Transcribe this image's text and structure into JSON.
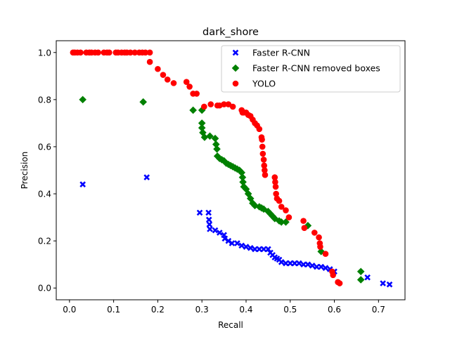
{
  "chart_data": {
    "type": "scatter",
    "title": "dark_shore",
    "xlabel": "Recall",
    "ylabel": "Precision",
    "xlim": [
      -0.03,
      0.76
    ],
    "ylim": [
      -0.05,
      1.05
    ],
    "xticks": [
      0.0,
      0.1,
      0.2,
      0.3,
      0.4,
      0.5,
      0.6,
      0.7
    ],
    "yticks": [
      0.0,
      0.2,
      0.4,
      0.6,
      0.8,
      1.0
    ],
    "xtick_labels": [
      "0.0",
      "0.1",
      "0.2",
      "0.3",
      "0.4",
      "0.5",
      "0.6",
      "0.7"
    ],
    "ytick_labels": [
      "0.0",
      "0.2",
      "0.4",
      "0.6",
      "0.8",
      "1.0"
    ],
    "grid": false,
    "legend_position": "top-right",
    "series": [
      {
        "name": "Faster R-CNN",
        "marker": "X",
        "color": "#0000ff",
        "points": [
          [
            0.03,
            0.44
          ],
          [
            0.175,
            0.47
          ],
          [
            0.295,
            0.32
          ],
          [
            0.315,
            0.32
          ],
          [
            0.316,
            0.29
          ],
          [
            0.317,
            0.27
          ],
          [
            0.318,
            0.25
          ],
          [
            0.33,
            0.245
          ],
          [
            0.34,
            0.235
          ],
          [
            0.35,
            0.225
          ],
          [
            0.352,
            0.21
          ],
          [
            0.36,
            0.2
          ],
          [
            0.368,
            0.19
          ],
          [
            0.38,
            0.19
          ],
          [
            0.39,
            0.18
          ],
          [
            0.4,
            0.175
          ],
          [
            0.41,
            0.17
          ],
          [
            0.42,
            0.165
          ],
          [
            0.43,
            0.165
          ],
          [
            0.44,
            0.165
          ],
          [
            0.45,
            0.165
          ],
          [
            0.455,
            0.15
          ],
          [
            0.46,
            0.14
          ],
          [
            0.465,
            0.13
          ],
          [
            0.47,
            0.125
          ],
          [
            0.475,
            0.12
          ],
          [
            0.48,
            0.11
          ],
          [
            0.49,
            0.105
          ],
          [
            0.5,
            0.105
          ],
          [
            0.51,
            0.105
          ],
          [
            0.52,
            0.105
          ],
          [
            0.53,
            0.1
          ],
          [
            0.54,
            0.1
          ],
          [
            0.55,
            0.095
          ],
          [
            0.56,
            0.09
          ],
          [
            0.57,
            0.09
          ],
          [
            0.58,
            0.085
          ],
          [
            0.59,
            0.08
          ],
          [
            0.6,
            0.07
          ],
          [
            0.675,
            0.045
          ],
          [
            0.71,
            0.02
          ],
          [
            0.725,
            0.015
          ]
        ]
      },
      {
        "name": "Faster R-CNN removed boxes",
        "marker": "D",
        "color": "#008000",
        "points": [
          [
            0.03,
            0.8
          ],
          [
            0.167,
            0.79
          ],
          [
            0.28,
            0.755
          ],
          [
            0.3,
            0.755
          ],
          [
            0.3,
            0.7
          ],
          [
            0.3,
            0.68
          ],
          [
            0.302,
            0.66
          ],
          [
            0.306,
            0.64
          ],
          [
            0.318,
            0.645
          ],
          [
            0.33,
            0.635
          ],
          [
            0.332,
            0.61
          ],
          [
            0.334,
            0.59
          ],
          [
            0.335,
            0.56
          ],
          [
            0.34,
            0.55
          ],
          [
            0.345,
            0.545
          ],
          [
            0.35,
            0.54
          ],
          [
            0.355,
            0.53
          ],
          [
            0.36,
            0.525
          ],
          [
            0.365,
            0.52
          ],
          [
            0.37,
            0.515
          ],
          [
            0.375,
            0.51
          ],
          [
            0.38,
            0.505
          ],
          [
            0.385,
            0.5
          ],
          [
            0.39,
            0.49
          ],
          [
            0.392,
            0.47
          ],
          [
            0.393,
            0.45
          ],
          [
            0.395,
            0.43
          ],
          [
            0.4,
            0.42
          ],
          [
            0.405,
            0.4
          ],
          [
            0.41,
            0.38
          ],
          [
            0.415,
            0.36
          ],
          [
            0.42,
            0.35
          ],
          [
            0.43,
            0.345
          ],
          [
            0.435,
            0.34
          ],
          [
            0.44,
            0.335
          ],
          [
            0.45,
            0.325
          ],
          [
            0.455,
            0.315
          ],
          [
            0.46,
            0.305
          ],
          [
            0.465,
            0.295
          ],
          [
            0.475,
            0.285
          ],
          [
            0.48,
            0.28
          ],
          [
            0.49,
            0.28
          ],
          [
            0.54,
            0.265
          ],
          [
            0.57,
            0.155
          ],
          [
            0.66,
            0.07
          ],
          [
            0.66,
            0.035
          ]
        ]
      },
      {
        "name": "YOLO",
        "marker": "o",
        "color": "#ff0000",
        "points": [
          [
            0.008,
            1.0
          ],
          [
            0.012,
            1.0
          ],
          [
            0.018,
            1.0
          ],
          [
            0.025,
            1.0
          ],
          [
            0.038,
            1.0
          ],
          [
            0.045,
            1.0
          ],
          [
            0.05,
            1.0
          ],
          [
            0.058,
            1.0
          ],
          [
            0.065,
            1.0
          ],
          [
            0.078,
            1.0
          ],
          [
            0.085,
            1.0
          ],
          [
            0.09,
            1.0
          ],
          [
            0.105,
            1.0
          ],
          [
            0.11,
            1.0
          ],
          [
            0.118,
            1.0
          ],
          [
            0.125,
            1.0
          ],
          [
            0.13,
            1.0
          ],
          [
            0.138,
            1.0
          ],
          [
            0.148,
            1.0
          ],
          [
            0.158,
            1.0
          ],
          [
            0.165,
            1.0
          ],
          [
            0.172,
            1.0
          ],
          [
            0.182,
            1.0
          ],
          [
            0.182,
            0.96
          ],
          [
            0.2,
            0.93
          ],
          [
            0.212,
            0.905
          ],
          [
            0.222,
            0.885
          ],
          [
            0.236,
            0.87
          ],
          [
            0.265,
            0.875
          ],
          [
            0.272,
            0.855
          ],
          [
            0.28,
            0.825
          ],
          [
            0.288,
            0.825
          ],
          [
            0.305,
            0.77
          ],
          [
            0.32,
            0.78
          ],
          [
            0.335,
            0.775
          ],
          [
            0.34,
            0.775
          ],
          [
            0.35,
            0.78
          ],
          [
            0.36,
            0.78
          ],
          [
            0.37,
            0.77
          ],
          [
            0.39,
            0.755
          ],
          [
            0.392,
            0.745
          ],
          [
            0.395,
            0.745
          ],
          [
            0.4,
            0.745
          ],
          [
            0.405,
            0.735
          ],
          [
            0.41,
            0.73
          ],
          [
            0.415,
            0.715
          ],
          [
            0.42,
            0.7
          ],
          [
            0.425,
            0.69
          ],
          [
            0.43,
            0.675
          ],
          [
            0.435,
            0.64
          ],
          [
            0.436,
            0.63
          ],
          [
            0.437,
            0.6
          ],
          [
            0.438,
            0.57
          ],
          [
            0.44,
            0.545
          ],
          [
            0.441,
            0.52
          ],
          [
            0.442,
            0.5
          ],
          [
            0.443,
            0.48
          ],
          [
            0.465,
            0.47
          ],
          [
            0.466,
            0.45
          ],
          [
            0.467,
            0.43
          ],
          [
            0.468,
            0.4
          ],
          [
            0.47,
            0.38
          ],
          [
            0.475,
            0.37
          ],
          [
            0.48,
            0.345
          ],
          [
            0.49,
            0.33
          ],
          [
            0.497,
            0.3
          ],
          [
            0.53,
            0.285
          ],
          [
            0.532,
            0.255
          ],
          [
            0.555,
            0.235
          ],
          [
            0.565,
            0.215
          ],
          [
            0.567,
            0.19
          ],
          [
            0.568,
            0.175
          ],
          [
            0.58,
            0.145
          ],
          [
            0.595,
            0.07
          ],
          [
            0.597,
            0.055
          ],
          [
            0.608,
            0.025
          ],
          [
            0.612,
            0.02
          ]
        ]
      }
    ]
  }
}
